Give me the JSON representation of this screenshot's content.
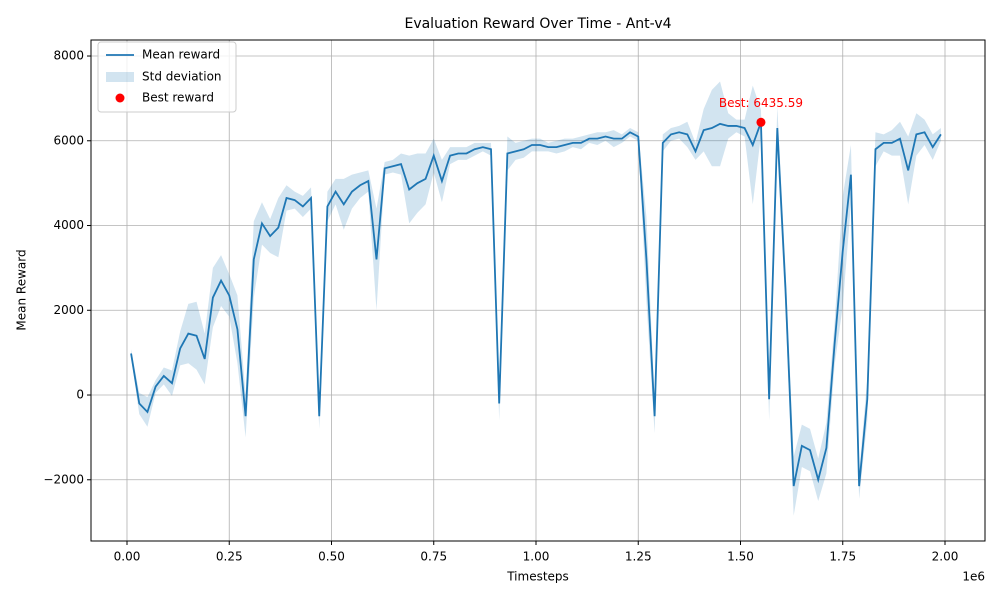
{
  "chart_data": {
    "type": "line",
    "title": "Evaluation Reward Over Time - Ant-v4",
    "x_label": "Timesteps",
    "y_label": "Mean Reward",
    "x_offset_label": "1e6",
    "x": [
      10000,
      30000,
      50000,
      70000,
      90000,
      110000,
      130000,
      150000,
      170000,
      190000,
      210000,
      230000,
      250000,
      270000,
      290000,
      310000,
      330000,
      350000,
      370000,
      390000,
      410000,
      430000,
      450000,
      470000,
      490000,
      510000,
      530000,
      550000,
      570000,
      590000,
      610000,
      630000,
      650000,
      670000,
      690000,
      710000,
      730000,
      750000,
      770000,
      790000,
      810000,
      830000,
      850000,
      870000,
      890000,
      910000,
      930000,
      950000,
      970000,
      990000,
      1010000,
      1030000,
      1050000,
      1070000,
      1090000,
      1110000,
      1130000,
      1150000,
      1170000,
      1190000,
      1210000,
      1230000,
      1250000,
      1270000,
      1290000,
      1310000,
      1330000,
      1350000,
      1370000,
      1390000,
      1410000,
      1430000,
      1450000,
      1470000,
      1490000,
      1510000,
      1530000,
      1550000,
      1570000,
      1590000,
      1610000,
      1630000,
      1650000,
      1670000,
      1690000,
      1710000,
      1730000,
      1750000,
      1770000,
      1790000,
      1810000,
      1830000,
      1850000,
      1870000,
      1890000,
      1910000,
      1930000,
      1950000,
      1970000,
      1990000
    ],
    "series": [
      {
        "name": "Mean reward",
        "color": "#1f77b4",
        "style": "line",
        "values": [
          980,
          -200,
          -400,
          200,
          450,
          280,
          1100,
          1450,
          1400,
          850,
          2300,
          2700,
          2350,
          1550,
          -500,
          3200,
          4050,
          3750,
          3950,
          4650,
          4600,
          4450,
          4650,
          -500,
          4450,
          4800,
          4500,
          4800,
          4950,
          5050,
          3200,
          5350,
          5400,
          5450,
          4850,
          5000,
          5100,
          5650,
          5050,
          5650,
          5700,
          5700,
          5800,
          5850,
          5800,
          -200,
          5700,
          5750,
          5800,
          5900,
          5900,
          5850,
          5850,
          5900,
          5950,
          5950,
          6050,
          6050,
          6100,
          6050,
          6050,
          6200,
          6100,
          3200,
          -500,
          5950,
          6150,
          6200,
          6150,
          5750,
          6250,
          6300,
          6400,
          6350,
          6350,
          6300,
          5900,
          6435.59,
          -100,
          6300,
          2500,
          -2150,
          -1200,
          -1300,
          -2000,
          -1250,
          1200,
          3400,
          5200,
          -2150,
          -100,
          5800,
          5950,
          5950,
          6050,
          5300,
          6150,
          6200,
          5850,
          6150
        ]
      },
      {
        "name": "Std deviation",
        "color": "#1f77b4",
        "style": "band",
        "values": [
          100,
          250,
          350,
          150,
          200,
          300,
          400,
          700,
          800,
          600,
          700,
          600,
          500,
          800,
          500,
          900,
          500,
          400,
          700,
          300,
          200,
          250,
          250,
          300,
          350,
          300,
          600,
          400,
          300,
          250,
          1200,
          150,
          150,
          250,
          800,
          700,
          600,
          400,
          500,
          200,
          150,
          150,
          150,
          100,
          150,
          400,
          400,
          200,
          200,
          150,
          150,
          100,
          150,
          150,
          100,
          150,
          100,
          150,
          100,
          200,
          100,
          100,
          100,
          1000,
          400,
          200,
          150,
          150,
          300,
          200,
          500,
          900,
          1000,
          300,
          150,
          200,
          1400,
          300,
          500,
          500,
          500,
          700,
          500,
          500,
          500,
          600,
          500,
          1300,
          700,
          300,
          500,
          400,
          200,
          300,
          400,
          800,
          500,
          300,
          300,
          150
        ]
      }
    ],
    "best": {
      "name": "Best reward",
      "color": "#ff0000",
      "x": 1550000,
      "y": 6435.59,
      "label": "Best: 6435.59"
    },
    "xlim": [
      -88000,
      2097800
    ],
    "ylim": [
      -3445,
      8378
    ],
    "xticks": [
      {
        "value": 0,
        "label": "0.00"
      },
      {
        "value": 250000,
        "label": "0.25"
      },
      {
        "value": 500000,
        "label": "0.50"
      },
      {
        "value": 750000,
        "label": "0.75"
      },
      {
        "value": 1000000,
        "label": "1.00"
      },
      {
        "value": 1250000,
        "label": "1.25"
      },
      {
        "value": 1500000,
        "label": "1.50"
      },
      {
        "value": 1750000,
        "label": "1.75"
      },
      {
        "value": 2000000,
        "label": "2.00"
      }
    ],
    "yticks": [
      {
        "value": -2000,
        "label": "−2000"
      },
      0,
      2000,
      4000,
      6000,
      8000
    ],
    "grid": true,
    "legend": "upper left"
  }
}
